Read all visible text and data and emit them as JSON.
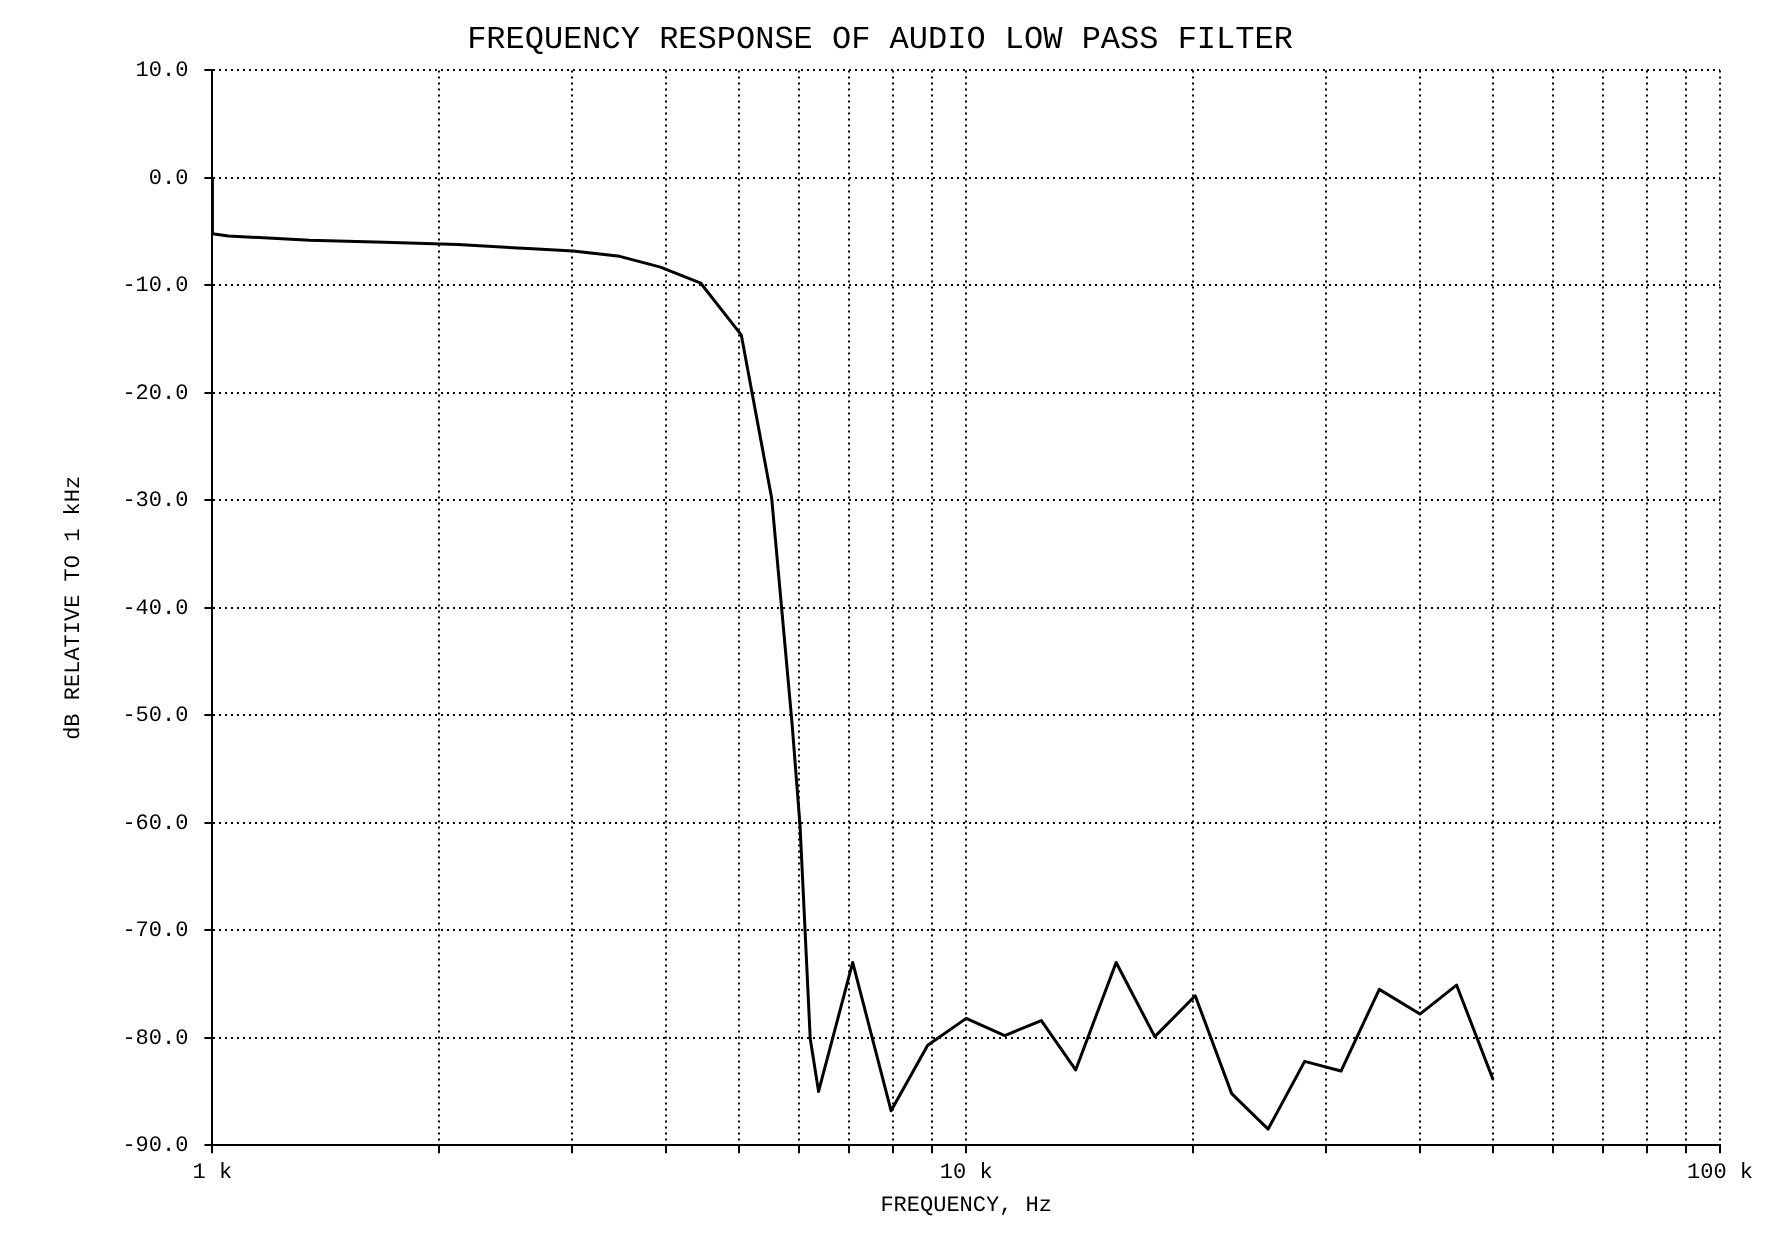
{
  "chart_data": {
    "type": "line",
    "title": "FREQUENCY RESPONSE OF AUDIO LOW PASS FILTER",
    "xlabel": "FREQUENCY, Hz",
    "ylabel": "dB RELATIVE TO 1 kHz",
    "x": [
      1000,
      1000,
      1050,
      1346,
      1692,
      2115,
      2660,
      3010,
      3470,
      3930,
      4445,
      5030,
      5520,
      5690,
      5875,
      6020,
      6100,
      6210,
      6370,
      7070,
      7950,
      8890,
      10000,
      11250,
      12580,
      13970,
      15810,
      17790,
      20130,
      22500,
      25150,
      28120,
      31420,
      35320,
      39990,
      44720,
      50000
    ],
    "series": [
      {
        "color": "#000000",
        "values": [
          0,
          -5.2,
          -5.4,
          -5.8,
          -6,
          -6.2,
          -6.6,
          -6.8,
          -7.3,
          -8.3,
          -9.8,
          -14.6,
          -29.8,
          -40,
          -50.8,
          -60.3,
          -68.7,
          -80.1,
          -85,
          -73,
          -86.8,
          -80.7,
          -78.2,
          -79.8,
          -78.4,
          -83,
          -73,
          -79.9,
          -76.1,
          -85.2,
          -88.5,
          -82.2,
          -83.1,
          -75.5,
          -77.8,
          -75.1,
          -83.9
        ]
      }
    ],
    "log": "x",
    "xlim": [
      1000,
      100000
    ],
    "xticks": [
      {
        "value": 1000,
        "label": "1 k"
      },
      {
        "value": 2000,
        "label": null
      },
      {
        "value": 3000,
        "label": null
      },
      {
        "value": 4000,
        "label": null
      },
      {
        "value": 5000,
        "label": null
      },
      {
        "value": 6000,
        "label": null
      },
      {
        "value": 7000,
        "label": null
      },
      {
        "value": 8000,
        "label": null
      },
      {
        "value": 9000,
        "label": null
      },
      {
        "value": 10000,
        "label": "10 k"
      },
      {
        "value": 20000,
        "label": null
      },
      {
        "value": 30000,
        "label": null
      },
      {
        "value": 40000,
        "label": null
      },
      {
        "value": 50000,
        "label": null
      },
      {
        "value": 60000,
        "label": null
      },
      {
        "value": 70000,
        "label": null
      },
      {
        "value": 80000,
        "label": null
      },
      {
        "value": 90000,
        "label": null
      },
      {
        "value": 100000,
        "label": "100 k"
      }
    ],
    "ylim": [
      -90,
      10
    ],
    "yticks": [
      {
        "value": -90,
        "label": "-90.0"
      },
      {
        "value": -80,
        "label": "-80.0"
      },
      {
        "value": -70,
        "label": "-70.0"
      },
      {
        "value": -60,
        "label": "-60.0"
      },
      {
        "value": -50,
        "label": "-50.0"
      },
      {
        "value": -40,
        "label": "-40.0"
      },
      {
        "value": -30,
        "label": "-30.0"
      },
      {
        "value": -20,
        "label": "-20.0"
      },
      {
        "value": -10,
        "label": "-10.0"
      },
      {
        "value": 0,
        "label": "0.0"
      },
      {
        "value": 10,
        "label": "10.0"
      }
    ],
    "grid": true,
    "legend": false,
    "marker": "none",
    "line_style": "solid"
  }
}
